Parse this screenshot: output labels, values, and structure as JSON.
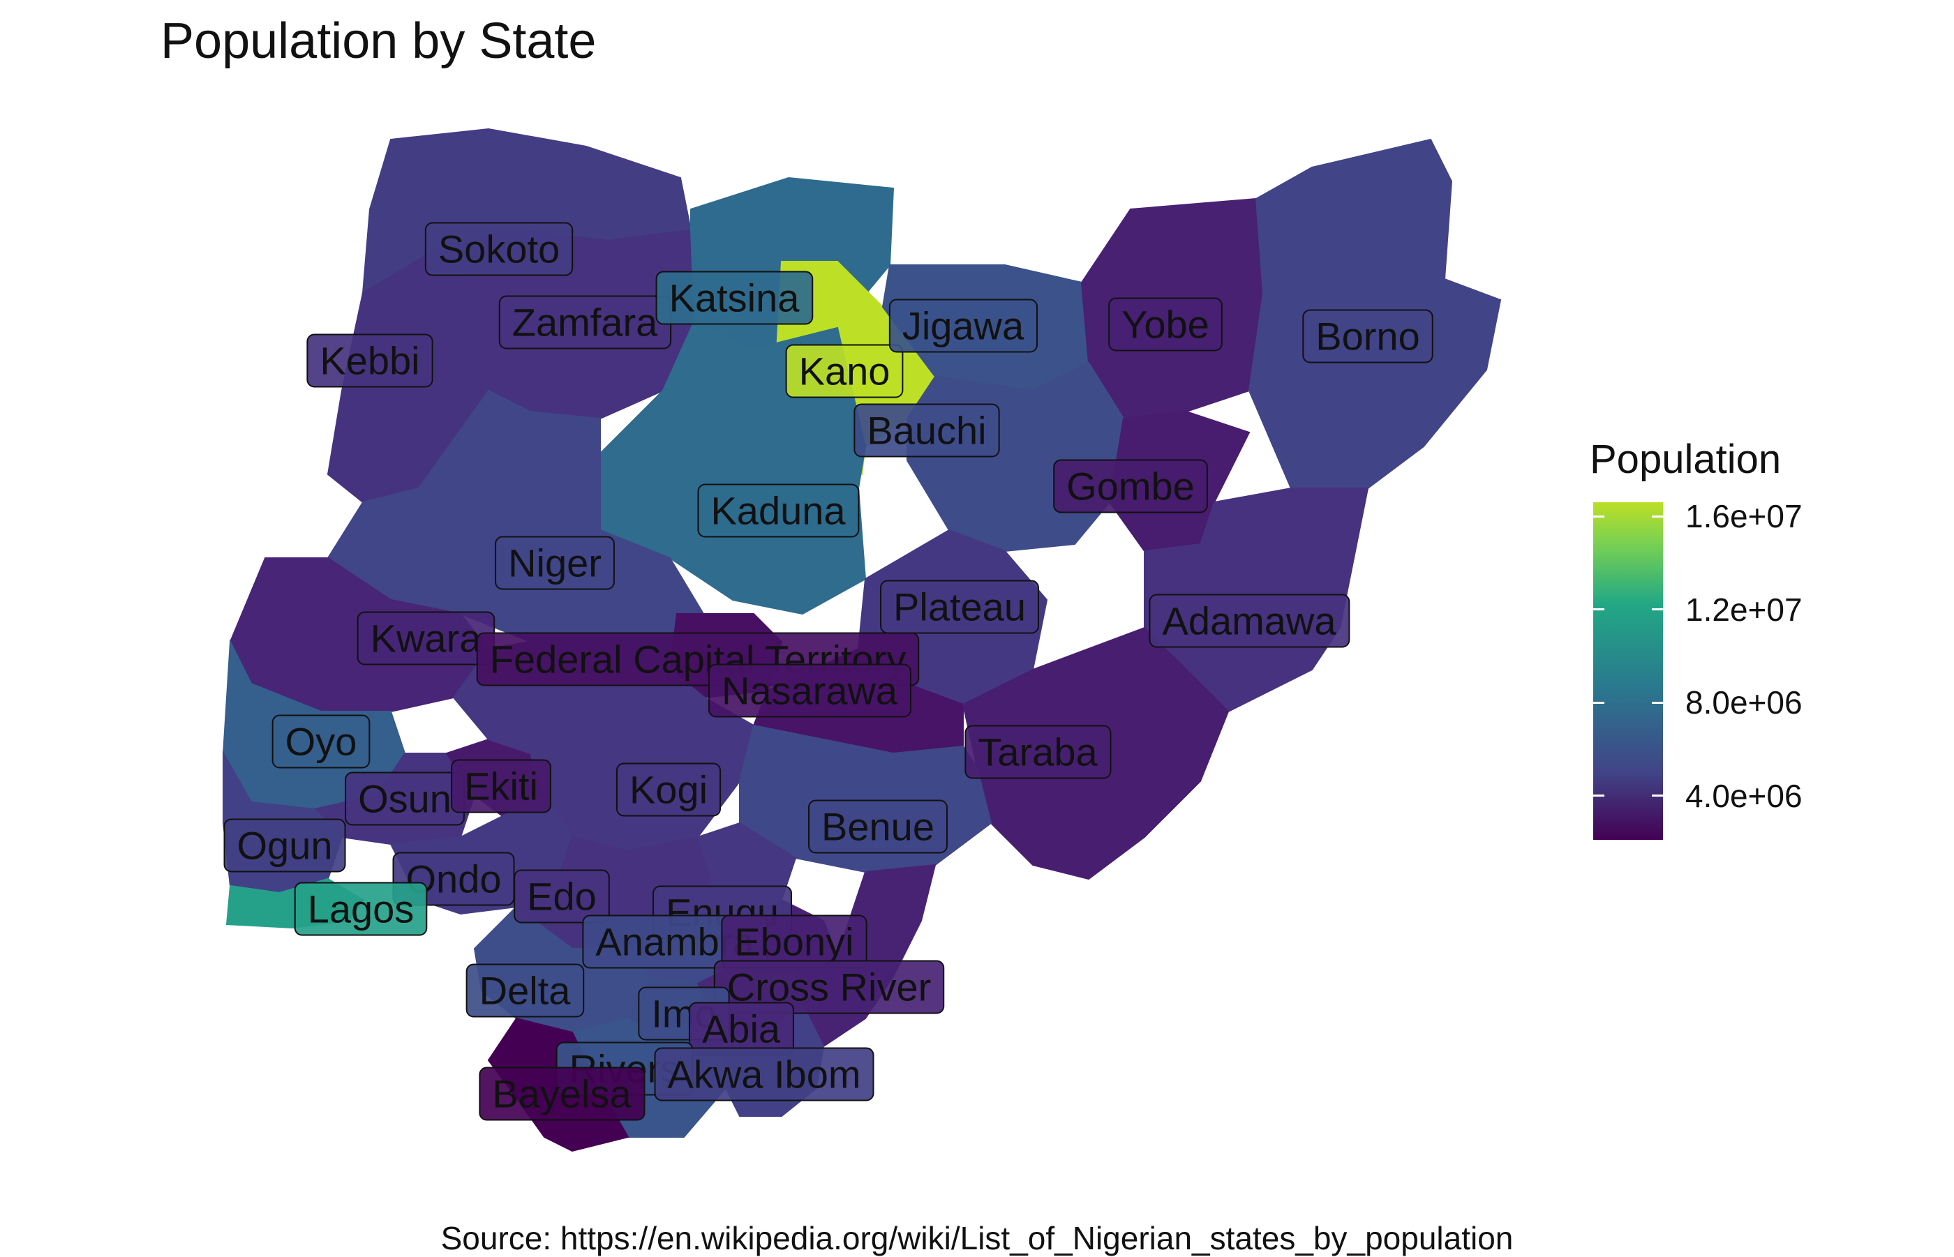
{
  "title": "Population by State",
  "source": "Source: https://en.wikipedia.org/wiki/List_of_Nigerian_states_by_population",
  "legend": {
    "title": "Population",
    "ticks": [
      {
        "value": 16000000,
        "label": "1.6e+07"
      },
      {
        "value": 12000000,
        "label": "1.2e+07"
      },
      {
        "value": 8000000,
        "label": "8.0e+06"
      },
      {
        "value": 4000000,
        "label": "4.0e+06"
      }
    ],
    "colorscale": [
      "#440154",
      "#414487",
      "#2a788e",
      "#22a884",
      "#7ad151",
      "#bddf26"
    ]
  },
  "states": [
    {
      "name": "Sokoto",
      "label": "Sokoto",
      "color": "#433d84"
    },
    {
      "name": "Zamfara",
      "label": "Zamfara",
      "color": "#46327e"
    },
    {
      "name": "Katsina",
      "label": "Katsina",
      "color": "#2f6b8e"
    },
    {
      "name": "Kebbi",
      "label": "Kebbi",
      "color": "#46337f"
    },
    {
      "name": "Kano",
      "label": "Kano",
      "color": "#bddf26"
    },
    {
      "name": "Jigawa",
      "label": "Jigawa",
      "color": "#3b528b"
    },
    {
      "name": "Yobe",
      "label": "Yobe",
      "color": "#482173"
    },
    {
      "name": "Borno",
      "label": "Borno",
      "color": "#414487"
    },
    {
      "name": "Bauchi",
      "label": "Bauchi",
      "color": "#3e4c8a"
    },
    {
      "name": "Gombe",
      "label": "Gombe",
      "color": "#481c6e"
    },
    {
      "name": "Kaduna",
      "label": "Kaduna",
      "color": "#2f6c8e"
    },
    {
      "name": "Niger",
      "label": "Niger",
      "color": "#404688"
    },
    {
      "name": "Plateau",
      "label": "Plateau",
      "color": "#453882"
    },
    {
      "name": "Adamawa",
      "label": "Adamawa",
      "color": "#46327e"
    },
    {
      "name": "Kwara",
      "label": "Kwara",
      "color": "#482576"
    },
    {
      "name": "Federal Capital Territory",
      "label": "Federal Capital Territory",
      "color": "#471063"
    },
    {
      "name": "Nasarawa",
      "label": "Nasarawa",
      "color": "#481467"
    },
    {
      "name": "Taraba",
      "label": "Taraba",
      "color": "#481f70"
    },
    {
      "name": "Oyo",
      "label": "Oyo",
      "color": "#355f8d"
    },
    {
      "name": "Osun",
      "label": "Osun",
      "color": "#463480"
    },
    {
      "name": "Ekiti",
      "label": "Ekiti",
      "color": "#481a6c"
    },
    {
      "name": "Kogi",
      "label": "Kogi",
      "color": "#453781"
    },
    {
      "name": "Benue",
      "label": "Benue",
      "color": "#3f4889"
    },
    {
      "name": "Ogun",
      "label": "Ogun",
      "color": "#424086"
    },
    {
      "name": "Ondo",
      "label": "Ondo",
      "color": "#443a83"
    },
    {
      "name": "Edo",
      "label": "Edo",
      "color": "#46327e"
    },
    {
      "name": "Lagos",
      "label": "Lagos",
      "color": "#25a18a"
    },
    {
      "name": "Enugu",
      "label": "Enugu",
      "color": "#453781"
    },
    {
      "name": "Anambra",
      "label": "Anambra",
      "color": "#3e4a89"
    },
    {
      "name": "Ebonyi",
      "label": "Ebonyi",
      "color": "#482173"
    },
    {
      "name": "Delta",
      "label": "Delta",
      "color": "#3d4e8a"
    },
    {
      "name": "Cross River",
      "label": "Cross River",
      "color": "#482374"
    },
    {
      "name": "Imo",
      "label": "Imo",
      "color": "#3d4d8a"
    },
    {
      "name": "Abia",
      "label": "Abia",
      "color": "#482878"
    },
    {
      "name": "Rivers",
      "label": "Rivers",
      "color": "#3a548c"
    },
    {
      "name": "Akwa Ibom",
      "label": "Akwa Ibom",
      "color": "#424086"
    },
    {
      "name": "Bayelsa",
      "label": "Bayelsa",
      "color": "#440154"
    }
  ]
}
